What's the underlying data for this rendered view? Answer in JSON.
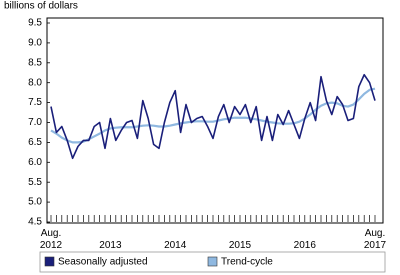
{
  "chart_data": {
    "type": "line",
    "y_label": "billions of dollars",
    "categories": [
      "Aug. 2012",
      null,
      null,
      null,
      null,
      null,
      null,
      null,
      null,
      null,
      null,
      "2013",
      null,
      null,
      null,
      null,
      null,
      null,
      null,
      null,
      null,
      null,
      null,
      "2014",
      null,
      null,
      null,
      null,
      null,
      null,
      null,
      null,
      null,
      null,
      null,
      "2015",
      null,
      null,
      null,
      null,
      null,
      null,
      null,
      null,
      null,
      null,
      null,
      "2016",
      null,
      null,
      null,
      null,
      null,
      null,
      null,
      null,
      null,
      null,
      null,
      null,
      "Aug. 2017"
    ],
    "series": [
      {
        "name": "Seasonally adjusted",
        "color": "#1a1f7a",
        "values": [
          7.4,
          6.75,
          6.9,
          6.55,
          6.1,
          6.4,
          6.55,
          6.55,
          6.9,
          7.0,
          6.35,
          7.1,
          6.55,
          6.8,
          7.0,
          7.05,
          6.6,
          7.55,
          7.1,
          6.45,
          6.35,
          7.0,
          7.5,
          7.8,
          6.75,
          7.45,
          7.0,
          7.1,
          7.15,
          6.9,
          6.6,
          7.15,
          7.45,
          7.0,
          7.4,
          7.2,
          7.45,
          7.0,
          7.4,
          6.55,
          7.15,
          6.55,
          7.2,
          6.95,
          7.3,
          6.95,
          6.6,
          7.1,
          7.5,
          7.05,
          8.15,
          7.55,
          7.2,
          7.65,
          7.45,
          7.05,
          7.1,
          7.9,
          8.2,
          8.0,
          7.55
        ]
      },
      {
        "name": "Trend-cycle",
        "color": "#8fb8e0",
        "values": [
          6.8,
          6.72,
          6.62,
          6.55,
          6.5,
          6.5,
          6.52,
          6.58,
          6.65,
          6.72,
          6.8,
          6.85,
          6.87,
          6.88,
          6.88,
          6.88,
          6.9,
          6.92,
          6.93,
          6.92,
          6.9,
          6.9,
          6.92,
          6.95,
          6.98,
          7.0,
          7.02,
          7.03,
          7.03,
          7.02,
          7.02,
          7.05,
          7.08,
          7.1,
          7.12,
          7.12,
          7.12,
          7.1,
          7.08,
          7.05,
          7.02,
          7.0,
          6.98,
          6.97,
          6.97,
          6.98,
          7.02,
          7.1,
          7.2,
          7.32,
          7.42,
          7.48,
          7.5,
          7.48,
          7.42,
          7.4,
          7.45,
          7.58,
          7.72,
          7.82,
          7.85
        ]
      }
    ],
    "ylim": [
      4.5,
      9.5
    ],
    "yticks": [
      9.5,
      {
        "value": 9,
        "label": "9.0"
      },
      8.5,
      {
        "value": 8,
        "label": "8.0"
      },
      7.5,
      {
        "value": 7,
        "label": "7.0"
      },
      6.5,
      {
        "value": 6,
        "label": "6.0"
      },
      5.5,
      {
        "value": 5,
        "label": "5.0"
      },
      4.5
    ],
    "grid": false,
    "legend": "bottom"
  }
}
